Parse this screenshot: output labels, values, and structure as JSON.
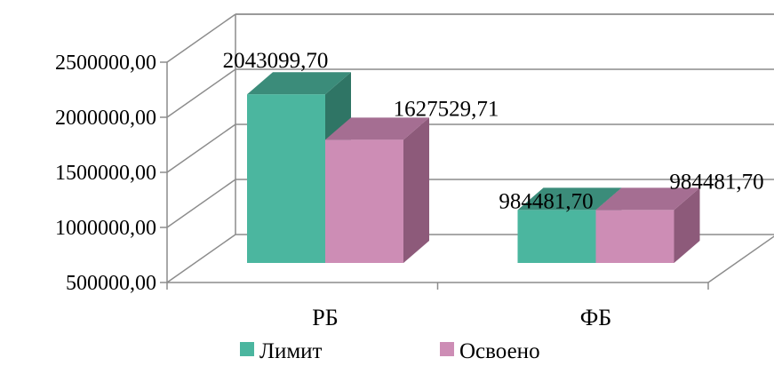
{
  "chart_data": {
    "type": "bar",
    "categories": [
      "РБ",
      "ФБ"
    ],
    "series": [
      {
        "name": "Лимит",
        "values": [
          2043099.7,
          984481.7
        ],
        "labels": [
          "2043099,70",
          "984481,70"
        ],
        "color": "#4BB69F",
        "top_color": "#3B8C7A",
        "side_color": "#2F7565"
      },
      {
        "name": "Освоено",
        "values": [
          1627529.71,
          984481.7
        ],
        "labels": [
          "1627529,71",
          "984481,70"
        ],
        "color": "#CD8DB5",
        "top_color": "#A56E92",
        "side_color": "#8D5A7A"
      }
    ],
    "ylim": [
      500000,
      2500000
    ],
    "yticks": [
      500000,
      1000000,
      1500000,
      2000000,
      2500000
    ],
    "ytick_labels": [
      "500000,00",
      "1000000,00",
      "1500000,00",
      "2000000,00",
      "2500000,00"
    ],
    "grid": true,
    "legend_position": "bottom",
    "title": "",
    "xlabel": "",
    "ylabel": ""
  }
}
